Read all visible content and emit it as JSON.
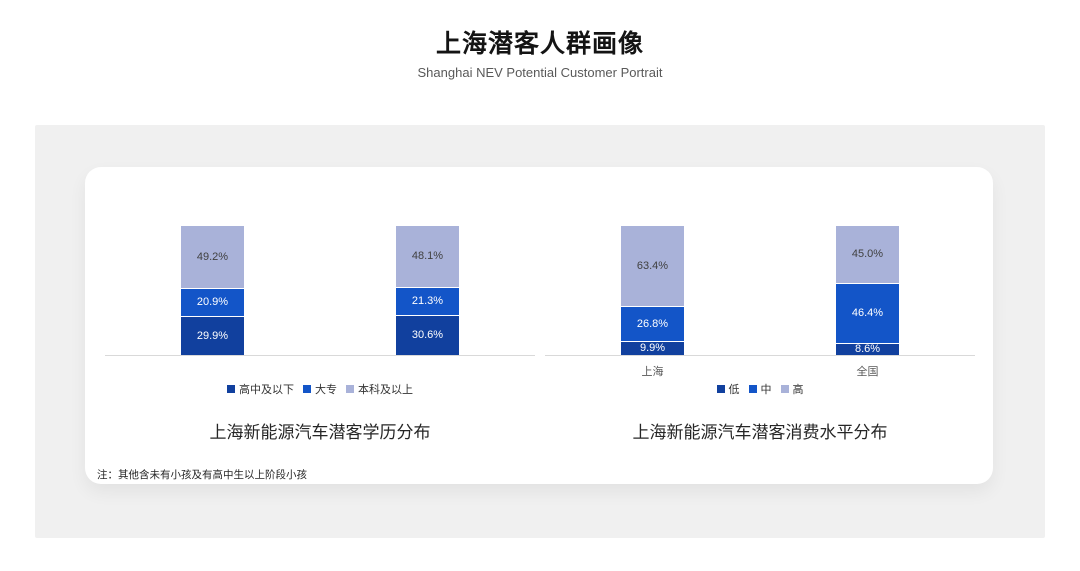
{
  "header": {
    "title": "上海潜客人群画像",
    "subtitle": "Shanghai NEV Potential Customer Portrait"
  },
  "footnote": "注：其他含未有小孩及有高中生以上阶段小孩",
  "colors": {
    "panel_background": "#f0f0f0",
    "card_background": "#ffffff",
    "axis_line": "#d9d9d9",
    "series_dark_blue": "#11409e",
    "series_medium_blue": "#1355c8",
    "series_light_periwinkle": "#a9b2d9"
  },
  "chart_data": [
    {
      "type": "bar",
      "stacked": true,
      "percent": true,
      "title": "上海新能源汽车潜客学历分布",
      "categories": [
        "",
        ""
      ],
      "show_category_labels": false,
      "legend_position": "bottom",
      "grid": false,
      "ylim": [
        0,
        100
      ],
      "series": [
        {
          "name": "高中及以下",
          "color": "#11409e",
          "label_color": "#ffffff",
          "values": [
            29.9,
            30.6
          ]
        },
        {
          "name": "大专",
          "color": "#1355c8",
          "label_color": "#ffffff",
          "values": [
            20.9,
            21.3
          ]
        },
        {
          "name": "本科及以上",
          "color": "#a9b2d9",
          "label_color": "#404040",
          "values": [
            49.2,
            48.1
          ]
        }
      ]
    },
    {
      "type": "bar",
      "stacked": true,
      "percent": true,
      "title": "上海新能源汽车潜客消费水平分布",
      "categories": [
        "上海",
        "全国"
      ],
      "show_category_labels": true,
      "legend_position": "bottom",
      "grid": false,
      "ylim": [
        0,
        100
      ],
      "series": [
        {
          "name": "低",
          "color": "#11409e",
          "label_color": "#ffffff",
          "values": [
            9.9,
            8.6
          ]
        },
        {
          "name": "中",
          "color": "#1355c8",
          "label_color": "#ffffff",
          "values": [
            26.8,
            46.4
          ]
        },
        {
          "name": "高",
          "color": "#a9b2d9",
          "label_color": "#404040",
          "values": [
            63.4,
            45.0
          ]
        }
      ]
    }
  ]
}
